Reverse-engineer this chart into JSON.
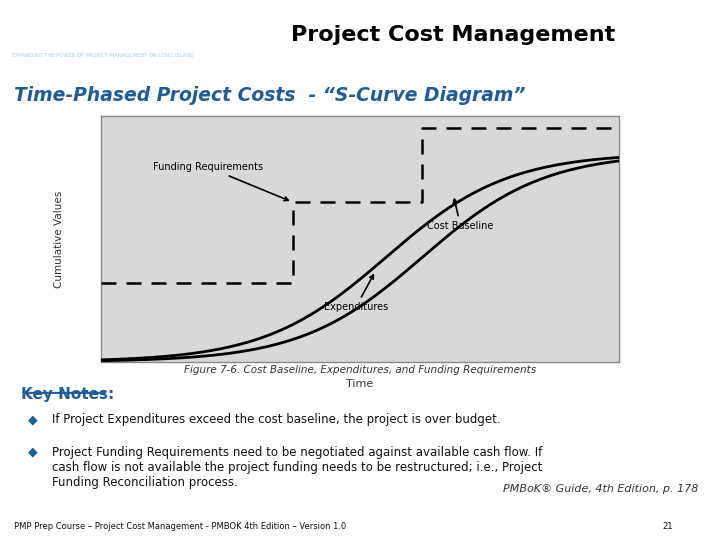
{
  "title": "Project Cost Management",
  "slide_title": "Time-Phased Project Costs  - “S-Curve Diagram”",
  "header_bg": "#1F5C99",
  "slide_title_color": "#1F5C99",
  "bg_color": "#FFFFFF",
  "footer_text_left": "PMP Prep Course – Project Cost Management - PMBOK 4th Edition – Version 1.0",
  "footer_page": "21",
  "figure_caption": "Figure 7-6. Cost Baseline, Expenditures, and Funding Requirements",
  "key_notes_title": "Key Notes:",
  "bullet1": "If Project Expenditures exceed the cost baseline, the project is over budget.",
  "bullet2": "Project Funding Requirements need to be negotiated against available cash flow. If\ncash flow is not available the project funding needs to be restructured; i.e., Project\nFunding Reconciliation process.",
  "pmbok_ref": "PMBoK® Guide, 4th Edition, p. 178",
  "label_funding": "Funding Requirements",
  "label_cost": "Cost Baseline",
  "label_expenditures": "Expenditures",
  "label_cumulative": "Cumulative Values",
  "label_time": "Time"
}
